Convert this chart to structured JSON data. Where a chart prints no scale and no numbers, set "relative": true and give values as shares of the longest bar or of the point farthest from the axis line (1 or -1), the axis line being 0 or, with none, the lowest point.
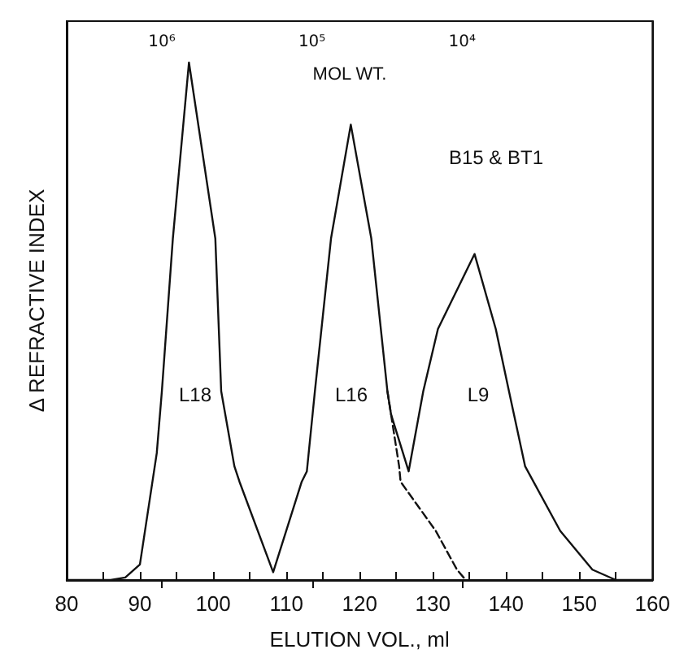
{
  "chart_data": {
    "type": "line",
    "relative": true,
    "xlabel": "ELUTION VOL., ml",
    "ylabel": "Δ REFRACTIVE INDEX",
    "x2label": "MOL WT.",
    "xlim": [
      80,
      160
    ],
    "xticks": [
      80,
      {
        "value": 85,
        "label": null
      },
      90,
      {
        "value": 95,
        "label": null
      },
      100,
      {
        "value": 105,
        "label": null
      },
      110,
      {
        "value": 115,
        "label": null
      },
      120,
      {
        "value": 125,
        "label": null
      },
      130,
      {
        "value": 135,
        "label": null
      },
      140,
      {
        "value": 145,
        "label": null
      },
      150,
      {
        "value": 155,
        "label": null
      },
      160
    ],
    "x2lim": [
      4300000,
      540
    ],
    "x2ticks": [
      {
        "value": 1000000,
        "label": "10⁶"
      },
      {
        "value": 100000,
        "label": "10⁵"
      },
      {
        "value": 10000,
        "label": "10⁴"
      }
    ],
    "grid": false,
    "marker": "none",
    "log": "x2",
    "series": [
      {
        "color": "#111111",
        "line_style": "solid",
        "x": [
          80,
          86,
          88,
          90,
          92.3,
          93,
          94.5,
          96.7,
          100.3,
          101.1,
          102.9,
          103.6,
          108.2,
          112.1,
          112.8,
          113.9,
          116.1,
          118.8,
          121.6,
          123.8,
          124.3,
          126.7,
          128.7,
          130.7,
          135.7,
          138.6,
          140.4,
          142.6,
          147.4,
          151.8,
          155,
          160
        ],
        "values": [
          0,
          0,
          0.005,
          0.03,
          0.245,
          0.365,
          0.66,
          1,
          0.66,
          0.365,
          0.22,
          0.19,
          0.015,
          0.19,
          0.21,
          0.365,
          0.66,
          0.88,
          0.66,
          0.365,
          0.32,
          0.21,
          0.365,
          0.485,
          0.63,
          0.485,
          0.365,
          0.22,
          0.095,
          0.02,
          0,
          0
        ]
      },
      {
        "color": "#111111",
        "line_style": "dashed",
        "x": [
          123.8,
          125.4,
          125.6,
          130.4,
          133.3,
          134.5
        ],
        "values": [
          0.365,
          0.22,
          0.19,
          0.095,
          0.02,
          0
        ]
      }
    ],
    "annotations": [
      "B15 & BT1",
      "L18",
      "L16",
      "L9"
    ]
  }
}
